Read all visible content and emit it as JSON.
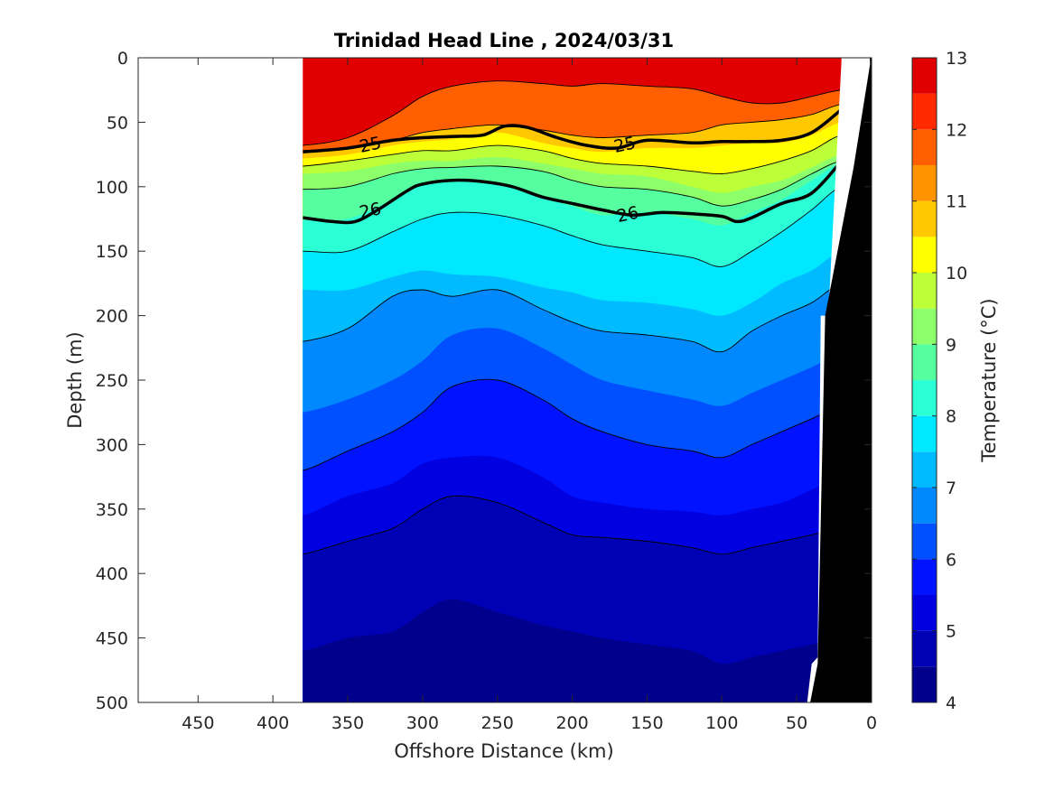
{
  "chart_data": {
    "type": "heatmap",
    "subtype": "filled-contour-section",
    "title": "Trinidad Head Line , 2024/03/31",
    "xlabel": "Offshore Distance (km)",
    "ylabel": "Depth (m)",
    "xlim": [
      490,
      0
    ],
    "x_reversed": true,
    "ylim": [
      0,
      500
    ],
    "y_reversed": true,
    "x_ticks": [
      450,
      400,
      350,
      300,
      250,
      200,
      150,
      100,
      50,
      0
    ],
    "y_ticks": [
      0,
      50,
      100,
      150,
      200,
      250,
      300,
      350,
      400,
      450,
      500
    ],
    "data_x_range": [
      380,
      20
    ],
    "colorbar": {
      "label": "Temperature (°C)",
      "range": [
        4,
        13
      ],
      "ticks": [
        4,
        5,
        6,
        7,
        8,
        9,
        10,
        11,
        12,
        13
      ],
      "levels": [
        4,
        4.5,
        5,
        5.5,
        6,
        6.5,
        7,
        7.5,
        8,
        8.5,
        9,
        9.5,
        10,
        10.5,
        11,
        11.5,
        12,
        12.5,
        13
      ],
      "colors": [
        "#00008c",
        "#0000b5",
        "#0000e0",
        "#0012ff",
        "#0050ff",
        "#0088ff",
        "#00bbff",
        "#00e8ff",
        "#2affd5",
        "#55ff9f",
        "#8cff6a",
        "#bcff38",
        "#ffff00",
        "#ffc800",
        "#ff9400",
        "#ff5f00",
        "#ff2a00",
        "#e00000",
        "#a50000"
      ]
    },
    "isotherm_depths_km": [
      380,
      350,
      320,
      300,
      280,
      250,
      220,
      200,
      180,
      150,
      120,
      100,
      80,
      60,
      40,
      20
    ],
    "isotherms": [
      {
        "temp": 12,
        "depth": [
          68,
          62,
          45,
          30,
          22,
          18,
          20,
          22,
          20,
          22,
          24,
          30,
          35,
          35,
          30,
          25
        ]
      },
      {
        "temp": 11.5,
        "depth": [
          75,
          72,
          65,
          62,
          60,
          55,
          60,
          65,
          68,
          65,
          62,
          58,
          56,
          55,
          50,
          40
        ]
      },
      {
        "temp": 11,
        "depth": [
          72,
          70,
          64,
          58,
          55,
          52,
          56,
          60,
          62,
          60,
          58,
          52,
          50,
          48,
          44,
          36
        ]
      },
      {
        "temp": 10.5,
        "depth": [
          78,
          75,
          68,
          65,
          63,
          58,
          66,
          70,
          73,
          70,
          70,
          68,
          66,
          66,
          60,
          50
        ]
      },
      {
        "temp": 10,
        "depth": [
          84,
          80,
          75,
          72,
          72,
          68,
          72,
          78,
          82,
          84,
          88,
          90,
          86,
          80,
          72,
          60
        ]
      },
      {
        "temp": 9.5,
        "depth": [
          90,
          88,
          82,
          80,
          80,
          77,
          82,
          86,
          90,
          92,
          100,
          105,
          100,
          95,
          85,
          75
        ]
      },
      {
        "temp": 9,
        "depth": [
          102,
          100,
          90,
          86,
          85,
          84,
          88,
          95,
          100,
          102,
          108,
          115,
          110,
          102,
          90,
          80
        ]
      },
      {
        "temp": 8.5,
        "depth": [
          126,
          125,
          110,
          98,
          95,
          98,
          108,
          115,
          122,
          120,
          125,
          130,
          120,
          110,
          95,
          82
        ]
      },
      {
        "temp": 8,
        "depth": [
          150,
          150,
          135,
          125,
          120,
          122,
          130,
          138,
          145,
          150,
          155,
          162,
          150,
          135,
          118,
          100
        ]
      },
      {
        "temp": 7.5,
        "depth": [
          180,
          180,
          170,
          165,
          168,
          170,
          178,
          182,
          188,
          190,
          195,
          200,
          190,
          175,
          165,
          150
        ]
      },
      {
        "temp": 7,
        "depth": [
          220,
          210,
          185,
          180,
          185,
          180,
          195,
          205,
          212,
          215,
          220,
          228,
          212,
          200,
          190,
          175
        ]
      },
      {
        "temp": 6.5,
        "depth": [
          275,
          265,
          250,
          235,
          215,
          210,
          225,
          238,
          250,
          258,
          265,
          270,
          260,
          250,
          240,
          230
        ]
      },
      {
        "temp": 6,
        "depth": [
          320,
          305,
          290,
          275,
          255,
          250,
          265,
          280,
          290,
          300,
          305,
          310,
          300,
          290,
          280,
          270
        ]
      },
      {
        "temp": 5.5,
        "depth": [
          355,
          340,
          330,
          315,
          310,
          310,
          325,
          340,
          345,
          350,
          352,
          355,
          350,
          345,
          335,
          325
        ]
      },
      {
        "temp": 5,
        "depth": [
          385,
          375,
          365,
          350,
          340,
          345,
          360,
          370,
          372,
          375,
          380,
          385,
          380,
          375,
          370,
          365
        ]
      },
      {
        "temp": 4.5,
        "depth": [
          460,
          450,
          445,
          430,
          420,
          430,
          440,
          445,
          450,
          455,
          460,
          470,
          465,
          460,
          455,
          450
        ]
      }
    ],
    "density_contours": [
      {
        "label": "25",
        "x": [
          380,
          350,
          320,
          300,
          280,
          260,
          245,
          230,
          210,
          190,
          170,
          150,
          120,
          100,
          80,
          60,
          40,
          20
        ],
        "depth": [
          73,
          70,
          64,
          62,
          61,
          60,
          53,
          54,
          62,
          68,
          70,
          64,
          66,
          65,
          65,
          64,
          58,
          40
        ]
      },
      {
        "label": "26",
        "x": [
          380,
          360,
          345,
          330,
          310,
          300,
          280,
          260,
          240,
          220,
          200,
          180,
          160,
          140,
          120,
          100,
          90,
          80,
          60,
          40,
          20
        ],
        "depth": [
          124,
          127,
          127,
          118,
          103,
          98,
          95,
          96,
          100,
          108,
          113,
          118,
          122,
          120,
          121,
          123,
          127,
          124,
          113,
          105,
          80
        ]
      }
    ],
    "contour_labels": [
      {
        "text": "25",
        "x": 335,
        "depth": 67
      },
      {
        "text": "25",
        "x": 165,
        "depth": 67
      },
      {
        "text": "26",
        "x": 335,
        "depth": 118
      },
      {
        "text": "26",
        "x": 163,
        "depth": 121
      }
    ],
    "bottom_profile": {
      "x": [
        20,
        28,
        30,
        34,
        36,
        40,
        43
      ],
      "depth": [
        0,
        180,
        200,
        200,
        465,
        470,
        500
      ]
    }
  }
}
